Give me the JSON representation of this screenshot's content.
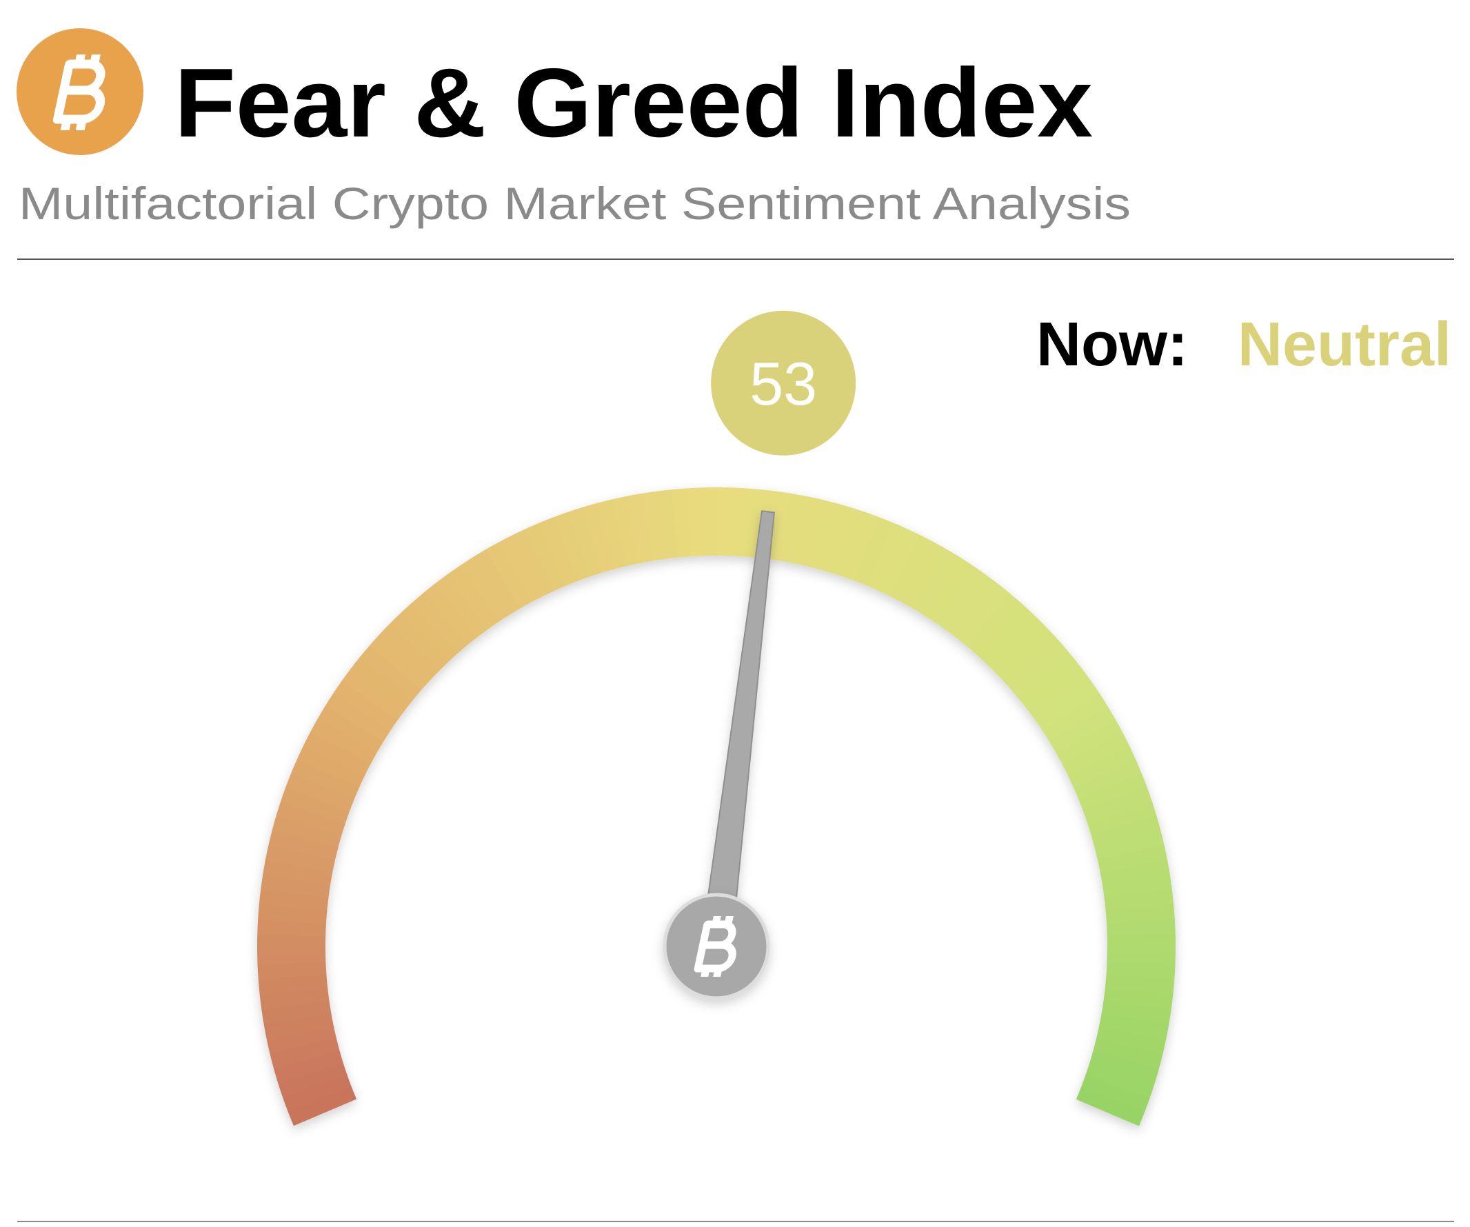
{
  "chart_data": {
    "type": "gauge",
    "title": "Fear & Greed Index",
    "subtitle": "Multifactorial Crypto Market Sentiment Analysis",
    "now_label": "Now:",
    "classification": "Neutral",
    "value": 53,
    "ylim": [
      0,
      100
    ],
    "color": "#d9d27a",
    "gradient": [
      "#c8745c",
      "#e3b36d",
      "#e8dc7e",
      "#d2e27c",
      "#98d465"
    ]
  }
}
